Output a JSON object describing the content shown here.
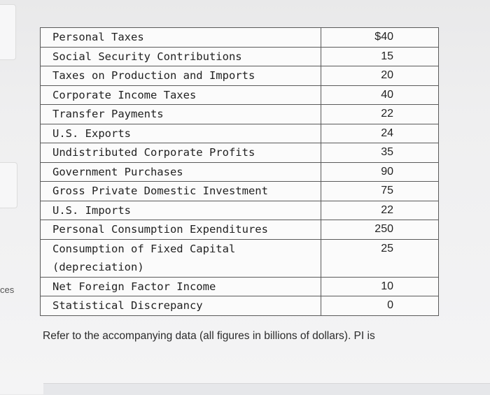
{
  "sidebar_fragment": "ces",
  "rows": [
    {
      "label": "Personal Taxes",
      "value": "$40"
    },
    {
      "label": "Social Security Contributions",
      "value": "15"
    },
    {
      "label": "Taxes on Production and Imports",
      "value": "20"
    },
    {
      "label": "Corporate Income Taxes",
      "value": "40"
    },
    {
      "label": "Transfer Payments",
      "value": "22"
    },
    {
      "label": "U.S. Exports",
      "value": "24"
    },
    {
      "label": "Undistributed Corporate Profits",
      "value": "35"
    },
    {
      "label": "Government Purchases",
      "value": "90"
    },
    {
      "label": "Gross Private Domestic Investment",
      "value": "75"
    },
    {
      "label": "U.S. Imports",
      "value": "22"
    },
    {
      "label": "Personal Consumption Expenditures",
      "value": "250"
    },
    {
      "label": "Consumption of Fixed Capital (depreciation)",
      "value": "25"
    },
    {
      "label": "Net Foreign Factor Income",
      "value": "10"
    },
    {
      "label": "Statistical Discrepancy",
      "value": "0"
    }
  ],
  "question": "Refer to the accompanying data (all figures in billions of dollars). PI is"
}
